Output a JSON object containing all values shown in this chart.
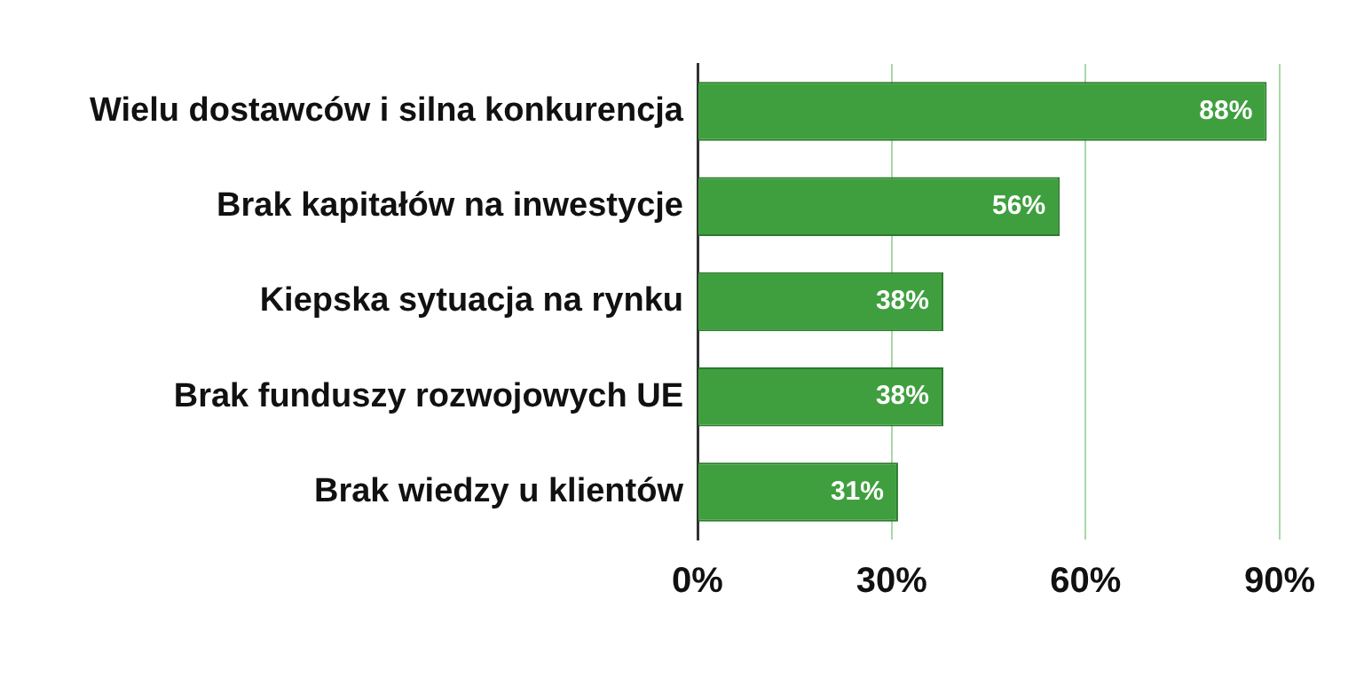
{
  "chart_data": {
    "type": "bar",
    "orientation": "horizontal",
    "categories": [
      "Wielu dostawców i silna konkurencja",
      "Brak kapitałów na inwestycje",
      "Kiepska sytuacja na rynku",
      "Brak funduszy rozwojowych UE",
      "Brak wiedzy u klientów"
    ],
    "values": [
      88,
      56,
      38,
      38,
      31
    ],
    "color": "#3f9f3f",
    "value_labels": [
      "88%",
      "56%",
      "38%",
      "38%",
      "31%"
    ],
    "xlim": [
      0,
      90
    ],
    "xticks": [
      {
        "value": 0,
        "label": "0%"
      },
      {
        "value": 30,
        "label": "30%"
      },
      {
        "value": 60,
        "label": "60%"
      },
      {
        "value": 90,
        "label": "90%"
      }
    ],
    "grid": "x"
  }
}
